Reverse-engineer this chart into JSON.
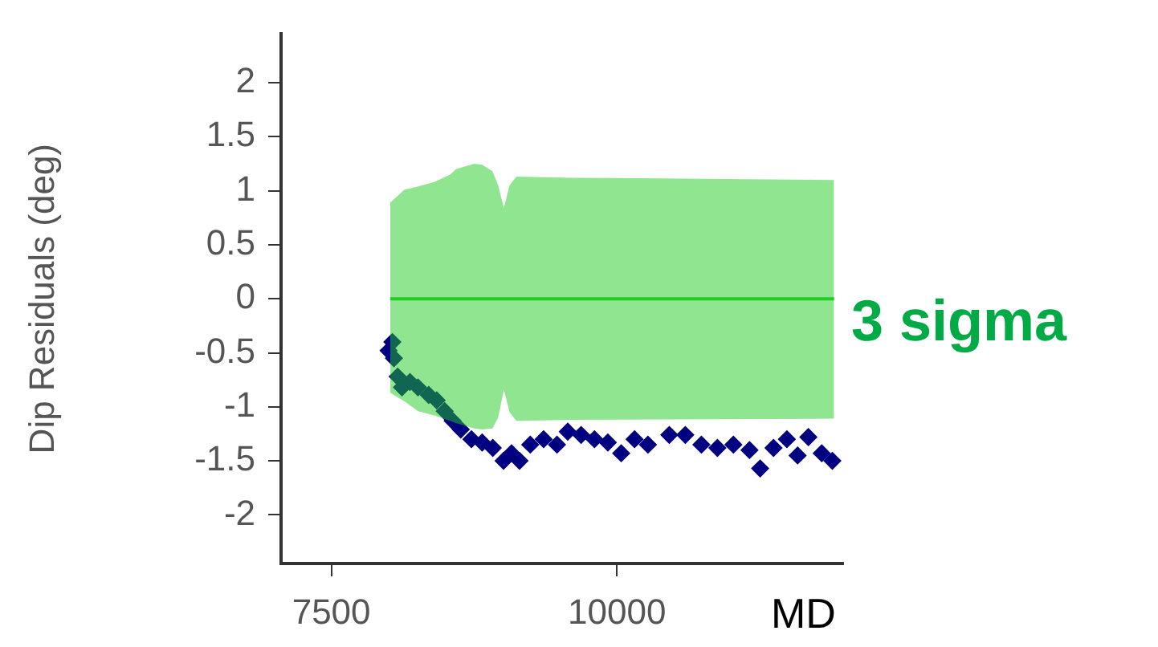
{
  "chart_data": {
    "type": "scatter",
    "xlabel": "MD",
    "ylabel": "Dip Residuals (deg)",
    "annotations": [
      "3 sigma"
    ],
    "xlim": [
      7060,
      11980
    ],
    "xticks": [
      7500,
      10000
    ],
    "ylim": [
      -2.45,
      2.45
    ],
    "yticks": [
      -2,
      -1.5,
      -1,
      -0.5,
      0,
      0.5,
      1,
      1.5,
      2
    ],
    "grid": false,
    "legend": false,
    "series": [
      {
        "type": "line",
        "color": "#22cc22",
        "marker": "none",
        "x": [
          8015,
          8140,
          8260,
          8400,
          8540,
          8590,
          8750,
          8820,
          8910,
          8960,
          9010,
          9060,
          9120,
          9600,
          11900
        ],
        "values": [
          0,
          0,
          0,
          0,
          0,
          0,
          0,
          0,
          0,
          0,
          0,
          0,
          0,
          0,
          0
        ],
        "upper": [
          0.89,
          1.01,
          1.04,
          1.08,
          1.15,
          1.2,
          1.25,
          1.24,
          1.18,
          1.05,
          0.84,
          1.05,
          1.13,
          1.12,
          1.1
        ],
        "lower": [
          -0.87,
          -0.95,
          -1.04,
          -1.08,
          -1.13,
          -1.15,
          -1.2,
          -1.21,
          -1.2,
          -1.1,
          -0.84,
          -1.05,
          -1.13,
          -1.12,
          -1.11
        ]
      },
      {
        "type": "scatter",
        "color": "#000080",
        "marker": "diamond",
        "x": [
          8001,
          8034,
          8048,
          8080,
          8118,
          8188,
          8258,
          8352,
          8422,
          8492,
          8562,
          8633,
          8726,
          8820,
          8913,
          9007,
          9077,
          9147,
          9241,
          9358,
          9475,
          9569,
          9686,
          9803,
          9920,
          10037,
          10154,
          10271,
          10458,
          10598,
          10739,
          10879,
          11019,
          11160,
          11253,
          11370,
          11487,
          11581,
          11675,
          11792,
          11885
        ],
        "values": [
          -0.48,
          -0.4,
          -0.55,
          -0.72,
          -0.82,
          -0.77,
          -0.82,
          -0.89,
          -0.94,
          -1.04,
          -1.13,
          -1.21,
          -1.3,
          -1.33,
          -1.38,
          -1.5,
          -1.43,
          -1.5,
          -1.35,
          -1.3,
          -1.35,
          -1.23,
          -1.26,
          -1.3,
          -1.33,
          -1.43,
          -1.3,
          -1.35,
          -1.26,
          -1.26,
          -1.35,
          -1.38,
          -1.35,
          -1.4,
          -1.57,
          -1.38,
          -1.3,
          -1.45,
          -1.28,
          -1.43,
          -1.5
        ]
      }
    ]
  }
}
